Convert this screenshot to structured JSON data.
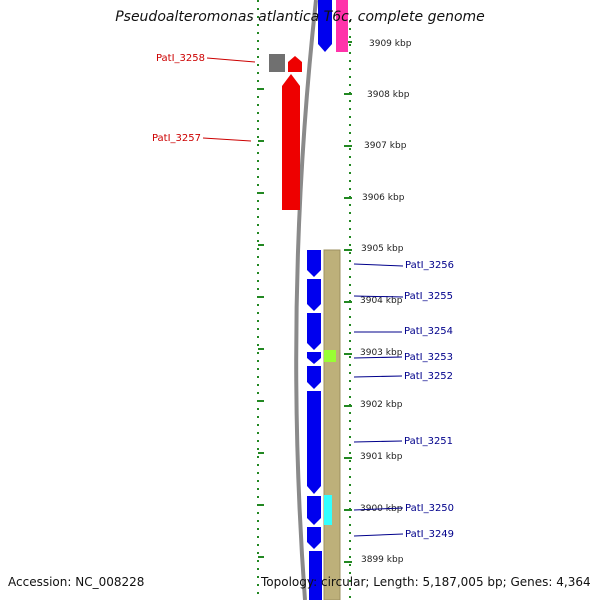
{
  "title": "Pseudoalteromonas atlantica T6c, complete genome",
  "accession": "Accession: NC_008228",
  "topology": "Topology: circular; Length: 5,187,005 bp; Genes: 4,364",
  "colors": {
    "forward_gene": "#0000ee",
    "reverse_gene": "#ee0000",
    "label_forward": "#00008b",
    "label_reverse": "#cc0000",
    "tick": "#228822",
    "backbone": "#888888",
    "feature_band": "#bdb07a",
    "gray_feature": "#707070",
    "pink_feature": "#ff33aa",
    "green_feature": "#99ff33",
    "cyan_feature": "#33ffff"
  },
  "scale": {
    "unit": "kbp",
    "ticks": [
      "3909 kbp",
      "3908 kbp",
      "3907 kbp",
      "3906 kbp",
      "3905 kbp",
      "3904 kbp",
      "3903 kbp",
      "3902 kbp",
      "3901 kbp",
      "3900 kbp",
      "3899 kbp"
    ]
  },
  "gene_labels": {
    "reverse": [
      "PatI_3258",
      "PatI_3257"
    ],
    "forward": [
      "PatI_3256",
      "PatI_3255",
      "PatI_3254",
      "PatI_3253",
      "PatI_3252",
      "PatI_3251",
      "PatI_3250",
      "PatI_3249"
    ]
  }
}
